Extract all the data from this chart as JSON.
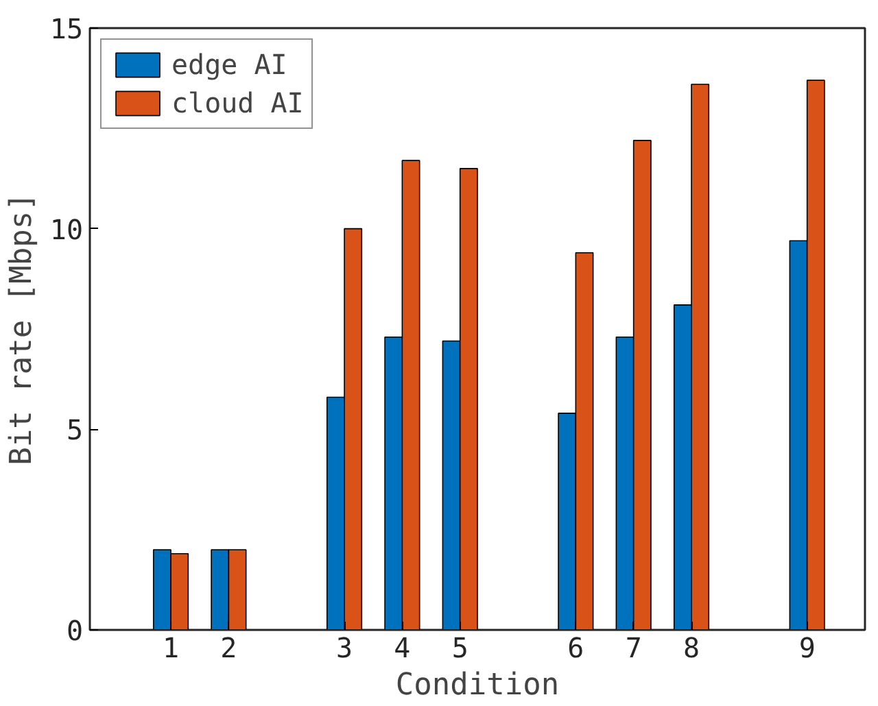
{
  "chart_data": {
    "type": "bar",
    "xlabel": "Condition",
    "ylabel": "Bit rate [Mbps]",
    "categories": [
      "1",
      "2",
      null,
      "3",
      "4",
      "5",
      null,
      "6",
      "7",
      "8",
      null,
      "9"
    ],
    "ylim": [
      0,
      15
    ],
    "yticks": [
      0,
      5,
      10,
      15
    ],
    "series": [
      {
        "name": "edge AI",
        "color": "#0072bd",
        "values": [
          2.0,
          2.0,
          null,
          5.8,
          7.3,
          7.2,
          null,
          5.4,
          7.3,
          8.1,
          null,
          9.7
        ]
      },
      {
        "name": "cloud AI",
        "color": "#d95319",
        "values": [
          1.9,
          2.0,
          null,
          10.0,
          11.7,
          11.5,
          null,
          9.4,
          12.2,
          13.6,
          null,
          13.7
        ]
      }
    ],
    "legend": "top left",
    "grid": false
  }
}
